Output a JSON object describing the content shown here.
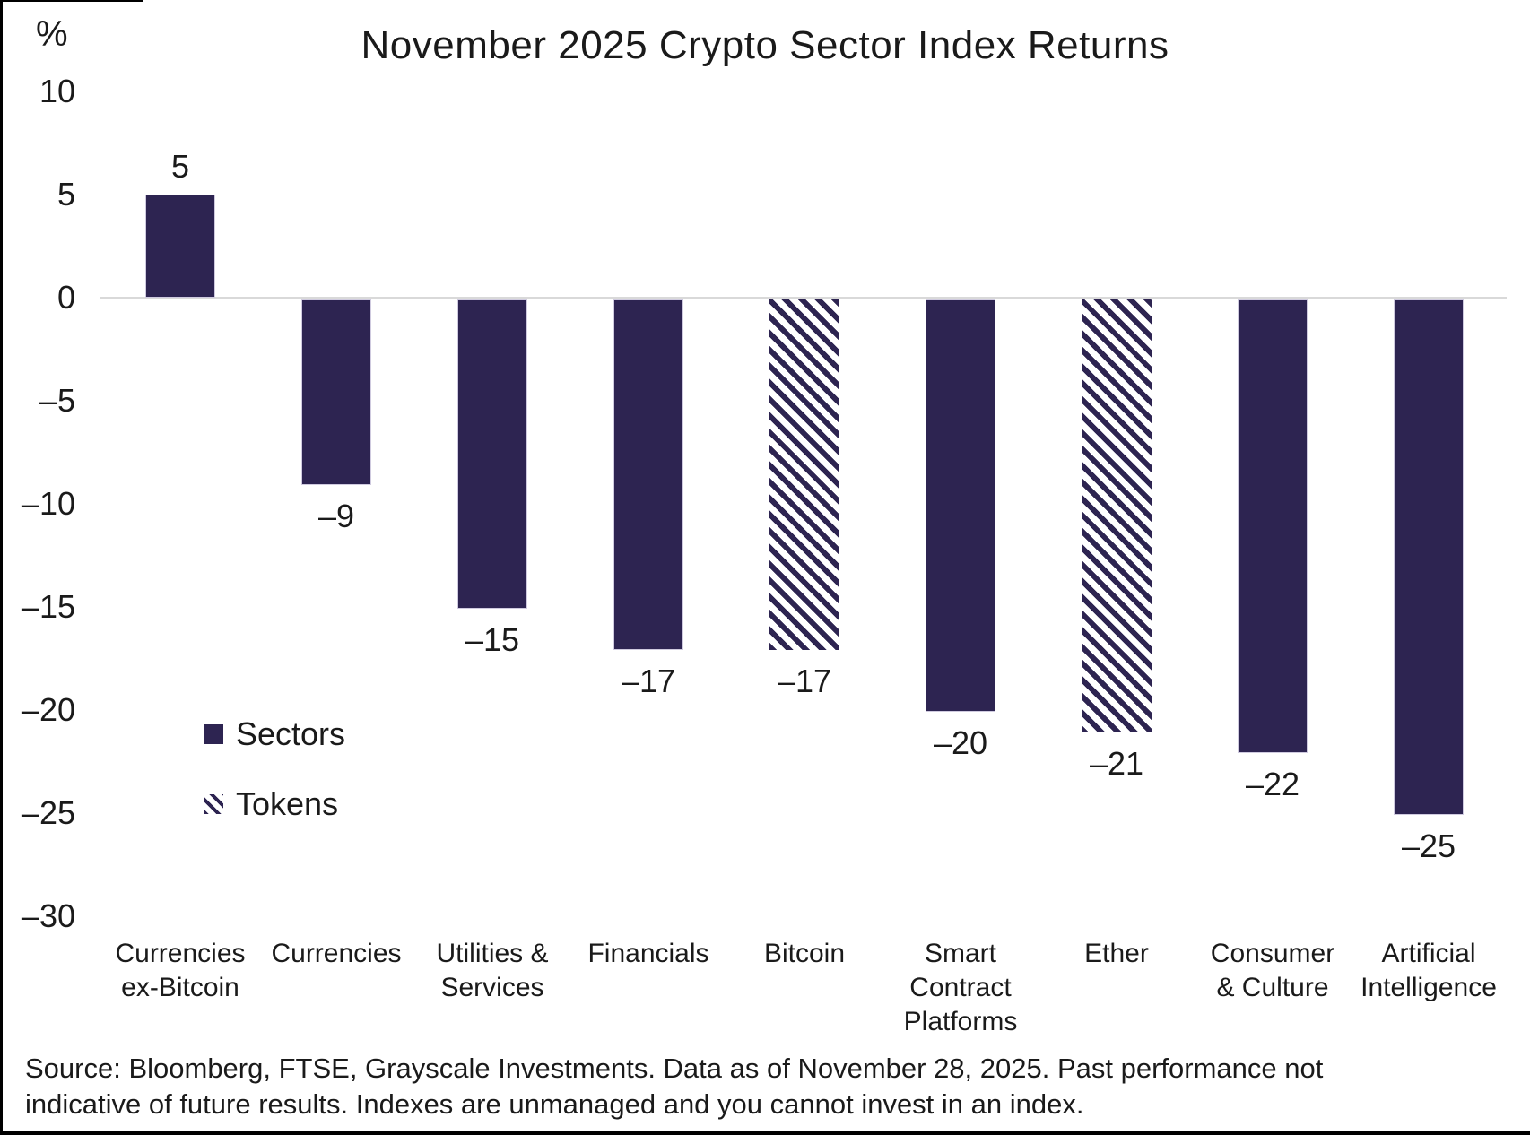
{
  "chart_data": {
    "type": "bar",
    "title": "November 2025 Crypto Sector Index Returns",
    "ylabel": "%",
    "xlabel": "",
    "ylim": [
      -30,
      10
    ],
    "yticks": [
      10,
      5,
      0,
      -5,
      -10,
      -15,
      -20,
      -25,
      -30
    ],
    "ytick_labels": [
      "10",
      "5",
      "0",
      "–5",
      "–10",
      "–15",
      "–20",
      "–25",
      "–30"
    ],
    "grid": "zero-line-only",
    "legend_position": "middle-left",
    "categories": [
      "Currencies ex-Bitcoin",
      "Currencies",
      "Utilities & Services",
      "Financials",
      "Bitcoin",
      "Smart Contract Platforms",
      "Ether",
      "Consumer & Culture",
      "Artificial Intelligence"
    ],
    "category_label_lines": [
      [
        "Currencies",
        "ex-Bitcoin"
      ],
      [
        "Currencies"
      ],
      [
        "Utilities &",
        "Services"
      ],
      [
        "Financials"
      ],
      [
        "Bitcoin"
      ],
      [
        "Smart",
        "Contract",
        "Platforms"
      ],
      [
        "Ether"
      ],
      [
        "Consumer",
        "& Culture"
      ],
      [
        "Artificial",
        "Intelligence"
      ]
    ],
    "values": [
      5,
      -9,
      -15,
      -17,
      -17,
      -20,
      -21,
      -22,
      -25
    ],
    "value_labels": [
      "5",
      "–9",
      "–15",
      "–17",
      "–17",
      "–20",
      "–21",
      "–22",
      "–25"
    ],
    "bar_styles": [
      "solid",
      "solid",
      "solid",
      "solid",
      "hatched",
      "solid",
      "hatched",
      "solid",
      "solid"
    ],
    "series": [
      {
        "name": "Sectors",
        "style": "solid"
      },
      {
        "name": "Tokens",
        "style": "hatched"
      }
    ]
  },
  "legend": {
    "sectors_label": "Sectors",
    "tokens_label": "Tokens"
  },
  "source": {
    "line1": "Source: Bloomberg, FTSE, Grayscale Investments. Data as of November 28, 2025. Past performance not",
    "line2": "indicative of future results. Indexes are unmanaged and you cannot invest in an index."
  },
  "colors": {
    "bar_fill": "#2D2451",
    "hatch_stripe": "#2D2451",
    "gridline": "#D9D9D9",
    "text": "#1A1A1A",
    "border": "#000000"
  }
}
